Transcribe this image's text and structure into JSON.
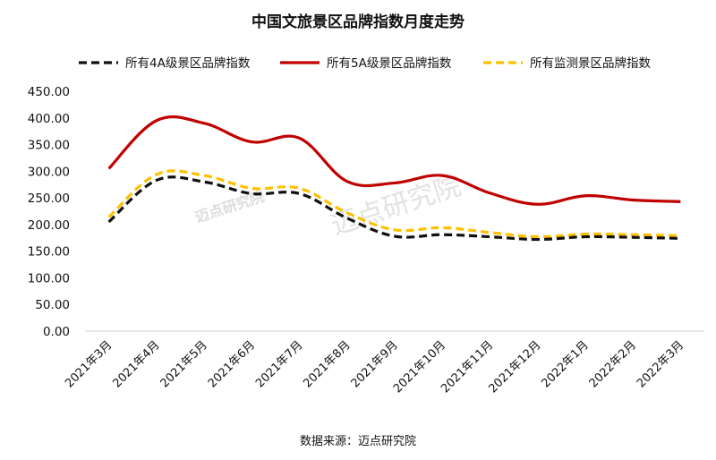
{
  "title": "中国文旅景区品牌指数月度走势",
  "source": "数据来源：迈点研究院",
  "watermark": "迈点研究院",
  "chart_data": {
    "type": "line",
    "categories": [
      "2021年3月",
      "2021年4月",
      "2021年5月",
      "2021年6月",
      "2021年7月",
      "2021年8月",
      "2021年9月",
      "2021年10月",
      "2021年11月",
      "2021年12月",
      "2022年1月",
      "2022年2月",
      "2022年3月"
    ],
    "ylim": [
      0,
      450
    ],
    "yticks": [
      "0.00",
      "50.00",
      "100.00",
      "150.00",
      "200.00",
      "250.00",
      "300.00",
      "350.00",
      "400.00",
      "450.00"
    ],
    "legend_position": "top",
    "series": [
      {
        "name": "所有4A级景区品牌指数",
        "color": "#111111",
        "dash": true,
        "values": [
          205,
          283,
          280,
          258,
          258,
          212,
          178,
          181,
          177,
          172,
          177,
          176,
          174
        ]
      },
      {
        "name": "所有5A级景区品牌指数",
        "color": "#c00000",
        "dash": false,
        "values": [
          305,
          395,
          390,
          355,
          362,
          281,
          278,
          292,
          259,
          238,
          254,
          246,
          243
        ]
      },
      {
        "name": "所有监测景区品牌指数",
        "color": "#ffc000",
        "dash": true,
        "values": [
          214,
          294,
          292,
          268,
          268,
          222,
          190,
          194,
          185,
          177,
          182,
          181,
          179
        ]
      }
    ]
  }
}
